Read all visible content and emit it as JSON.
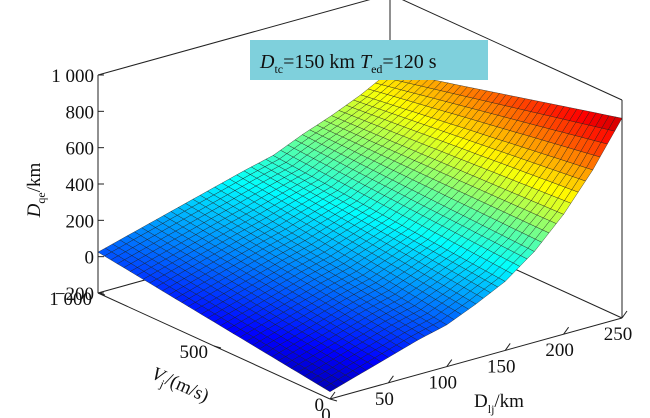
{
  "chart_data": {
    "type": "surface",
    "title": "",
    "annotation": {
      "d1": "D",
      "d1_sub": "tc",
      "d1_val": "=150 km ",
      "t1": "T",
      "t1_sub": "ed",
      "t1_val": "=120 s",
      "background": "#7fd0dc"
    },
    "zlabel": {
      "main": "D",
      "sub": "qe",
      "unit": "/km"
    },
    "xlabel": {
      "main": "D",
      "sub": "lj",
      "unit": "/km"
    },
    "ylabel": {
      "main": "V",
      "sub": "j",
      "unit": "/(m/s)"
    },
    "zticks": [
      "1 000",
      "800",
      "600",
      "400",
      "200",
      "0",
      "−200"
    ],
    "xticks": [
      "0",
      "50",
      "100",
      "150",
      "200",
      "250"
    ],
    "yticks": [
      "0",
      "500",
      "1 000"
    ],
    "zlim": [
      -200,
      1000
    ],
    "xlim": [
      0,
      250
    ],
    "ylim": [
      0,
      1000
    ],
    "grid": false,
    "colormap": "jet",
    "corner_values": {
      "x0_y0": -160,
      "x250_y0": 900,
      "x0_y1000": 25,
      "x250_y1000": 575
    },
    "surface": {
      "x": [
        0,
        25,
        50,
        75,
        100,
        125,
        150,
        175,
        200,
        225,
        250
      ],
      "y": [
        0,
        100,
        200,
        300,
        400,
        500,
        600,
        700,
        800,
        900,
        1000
      ],
      "z_at_y0": [
        -160,
        -110,
        -60,
        -10,
        30,
        100,
        180,
        300,
        460,
        660,
        900
      ],
      "z_at_y1000": [
        25,
        70,
        115,
        160,
        205,
        250,
        290,
        360,
        420,
        490,
        575
      ]
    }
  }
}
